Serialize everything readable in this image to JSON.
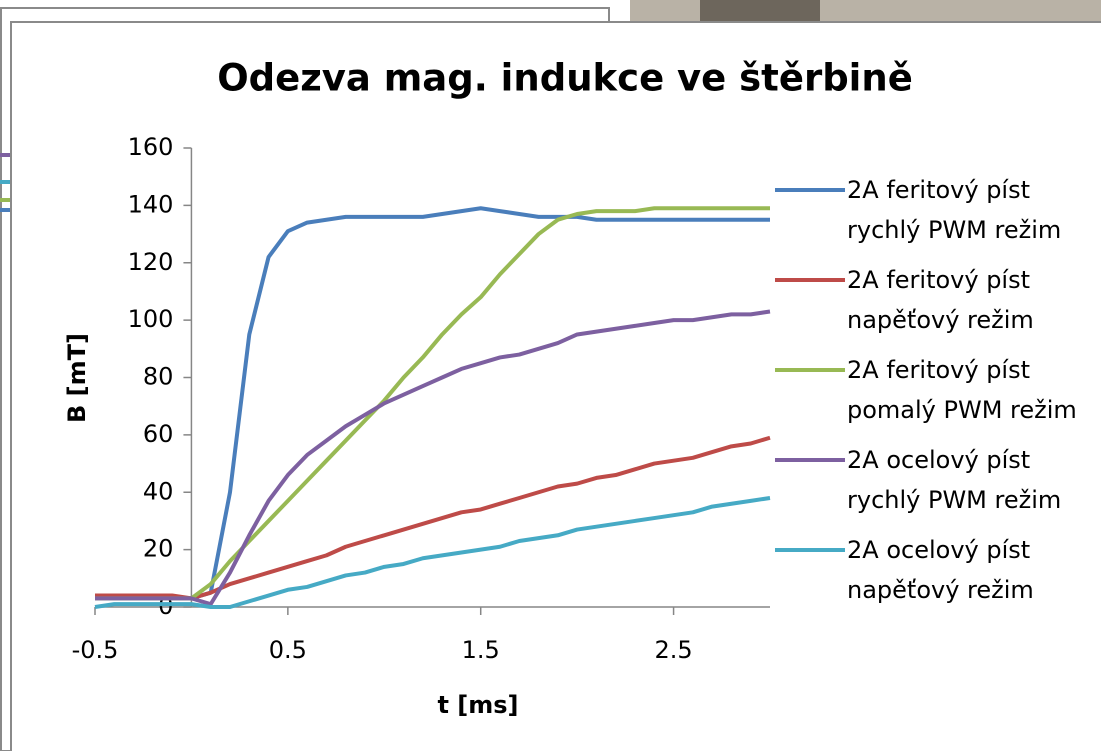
{
  "chart_data": {
    "type": "line",
    "title": "Odezva mag. indukce ve štěrbině",
    "xlabel": "t [ms]",
    "ylabel": "B [mT]",
    "x": [
      -0.5,
      -0.4,
      -0.3,
      -0.2,
      -0.1,
      0.0,
      0.1,
      0.2,
      0.3,
      0.4,
      0.5,
      0.6,
      0.7,
      0.8,
      0.9,
      1.0,
      1.1,
      1.2,
      1.3,
      1.4,
      1.5,
      1.6,
      1.7,
      1.8,
      1.9,
      2.0,
      2.1,
      2.2,
      2.3,
      2.4,
      2.5,
      2.6,
      2.7,
      2.8,
      2.9,
      3.0
    ],
    "series": [
      {
        "name": "2A feritový píst rychlý PWM režim",
        "color": "#4a7ebb",
        "values": [
          3,
          3,
          3,
          3,
          3,
          3,
          5,
          40,
          95,
          122,
          131,
          134,
          135,
          136,
          136,
          136,
          136,
          136,
          137,
          138,
          139,
          138,
          137,
          136,
          136,
          136,
          135,
          135,
          135,
          135,
          135,
          135,
          135,
          135,
          135,
          135
        ]
      },
      {
        "name": "2A feritový píst napěťový režim",
        "color": "#be4b48",
        "values": [
          4,
          4,
          4,
          4,
          4,
          3,
          5,
          8,
          10,
          12,
          14,
          16,
          18,
          21,
          23,
          25,
          27,
          29,
          31,
          33,
          34,
          36,
          38,
          40,
          42,
          43,
          45,
          46,
          48,
          50,
          51,
          52,
          54,
          56,
          57,
          59
        ]
      },
      {
        "name": "2A feritový píst pomalý PWM režim",
        "color": "#98b954",
        "values": [
          3,
          3,
          3,
          3,
          3,
          3,
          8,
          16,
          23,
          30,
          37,
          44,
          51,
          58,
          65,
          72,
          80,
          87,
          95,
          102,
          108,
          116,
          123,
          130,
          135,
          137,
          138,
          138,
          138,
          139,
          139,
          139,
          139,
          139,
          139,
          139
        ]
      },
      {
        "name": "2A ocelový píst rychlý PWM režim",
        "color": "#7d60a0",
        "values": [
          3,
          3,
          3,
          3,
          3,
          3,
          1,
          12,
          25,
          37,
          46,
          53,
          58,
          63,
          67,
          71,
          74,
          77,
          80,
          83,
          85,
          87,
          88,
          90,
          92,
          95,
          96,
          97,
          98,
          99,
          100,
          100,
          101,
          102,
          102,
          103
        ]
      },
      {
        "name": "2A ocelový píst napěťový režim",
        "color": "#46aac5",
        "values": [
          0,
          1,
          1,
          1,
          1,
          1,
          0,
          0,
          2,
          4,
          6,
          7,
          9,
          11,
          12,
          14,
          15,
          17,
          18,
          19,
          20,
          21,
          23,
          24,
          25,
          27,
          28,
          29,
          30,
          31,
          32,
          33,
          35,
          36,
          37,
          38
        ]
      }
    ],
    "xlim": [
      -0.5,
      3.0
    ],
    "xticks": [
      -0.5,
      0.5,
      1.5,
      2.5
    ],
    "ylim": [
      0,
      160
    ],
    "yticks": [
      0,
      20,
      40,
      60,
      80,
      100,
      120,
      140,
      160
    ],
    "grid": false,
    "legend": "right"
  }
}
